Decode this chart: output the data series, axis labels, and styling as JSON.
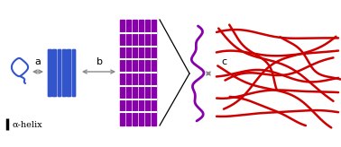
{
  "fig_width": 3.78,
  "fig_height": 1.64,
  "dpi": 100,
  "bg_color": "#ffffff",
  "blue_color": "#3355CC",
  "purple_color": "#8800AA",
  "red_color": "#CC0000",
  "arrow_color": "#888888",
  "label_a": "a",
  "label_b": "b",
  "label_c": "c",
  "legend_text": "α-helix"
}
